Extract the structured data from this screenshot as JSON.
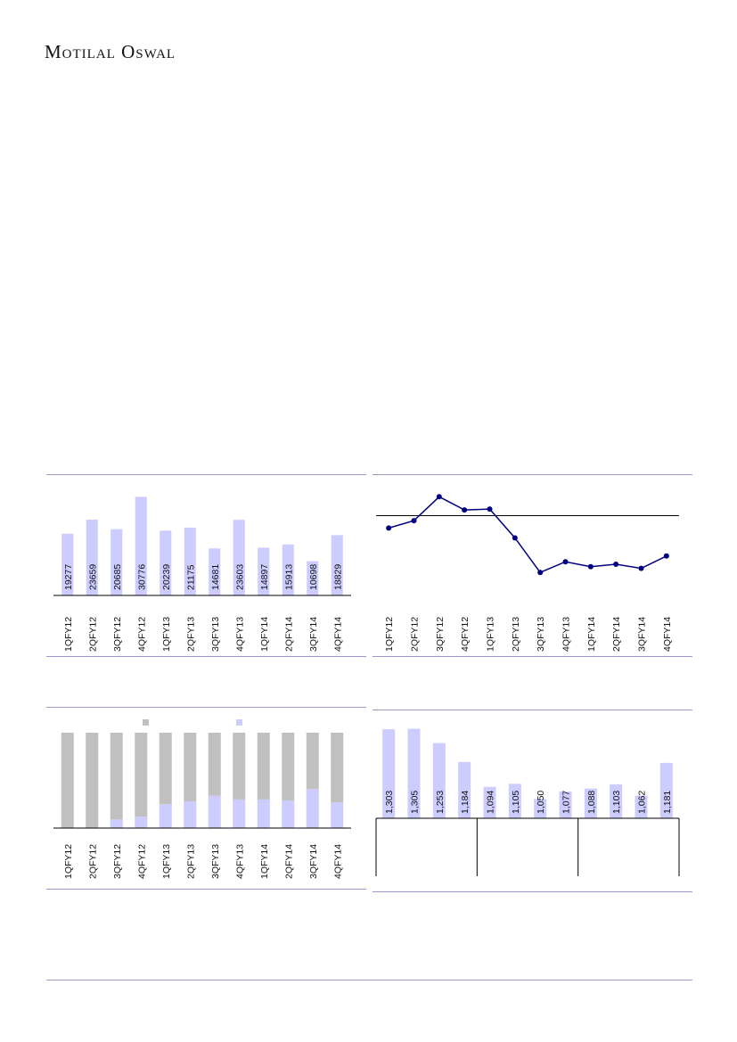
{
  "header": {
    "brand": "Motilal Oswal"
  },
  "chart_data": [
    {
      "type": "bar",
      "categories": [
        "1QFY12",
        "2QFY12",
        "3QFY12",
        "4QFY12",
        "1QFY13",
        "2QFY13",
        "3QFY13",
        "4QFY13",
        "1QFY14",
        "2QFY14",
        "3QFY14",
        "4QFY14"
      ],
      "values": [
        19277,
        23659,
        20685,
        30776,
        20239,
        21175,
        14681,
        23603,
        14897,
        15913,
        10698,
        18829
      ],
      "ylim": [
        0,
        32000
      ],
      "color": "#ccccff"
    },
    {
      "type": "line",
      "categories": [
        "1QFY12",
        "2QFY12",
        "3QFY12",
        "4QFY12",
        "1QFY13",
        "2QFY13",
        "3QFY13",
        "4QFY13",
        "1QFY14",
        "2QFY14",
        "3QFY14",
        "4QFY14"
      ],
      "values": [
        18.3,
        19.2,
        22.1,
        20.5,
        20.6,
        17.1,
        12.9,
        14.2,
        13.6,
        13.9,
        13.4,
        14.9
      ],
      "reference_line": 19.8,
      "ylim": [
        10,
        23
      ],
      "color": "#000080"
    },
    {
      "type": "bar",
      "stacked": true,
      "categories": [
        "1QFY12",
        "2QFY12",
        "3QFY12",
        "4QFY12",
        "1QFY13",
        "2QFY13",
        "3QFY13",
        "4QFY13",
        "1QFY14",
        "2QFY14",
        "3QFY14",
        "4QFY14"
      ],
      "series": [
        {
          "values": [
            0,
            0,
            9,
            12,
            25,
            28,
            34,
            30,
            30,
            29,
            41,
            27
          ],
          "color": "#ccccff"
        },
        {
          "values": [
            100,
            100,
            91,
            88,
            75,
            72,
            66,
            70,
            70,
            71,
            59,
            73
          ],
          "color": "#c0c0c0"
        }
      ],
      "legend_swatches": [
        "#c0c0c0",
        "#ccccff"
      ],
      "ylim": [
        0,
        100
      ]
    },
    {
      "type": "bar",
      "categories": [
        "",
        "",
        "",
        "",
        "",
        "",
        "",
        "",
        "",
        "",
        "",
        ""
      ],
      "values": [
        1303,
        1305,
        1253,
        1184,
        1094,
        1105,
        1050,
        1077,
        1088,
        1103,
        1062,
        1181
      ],
      "data_labels": [
        "1,303",
        "1,305",
        "1,253",
        "1,184",
        "1,094",
        "1,105",
        "1,050",
        "1,077",
        "1,088",
        "1,103",
        "1,062",
        "1,181"
      ],
      "groups": 3,
      "ylim": [
        980,
        1310
      ],
      "color": "#ccccff"
    }
  ]
}
